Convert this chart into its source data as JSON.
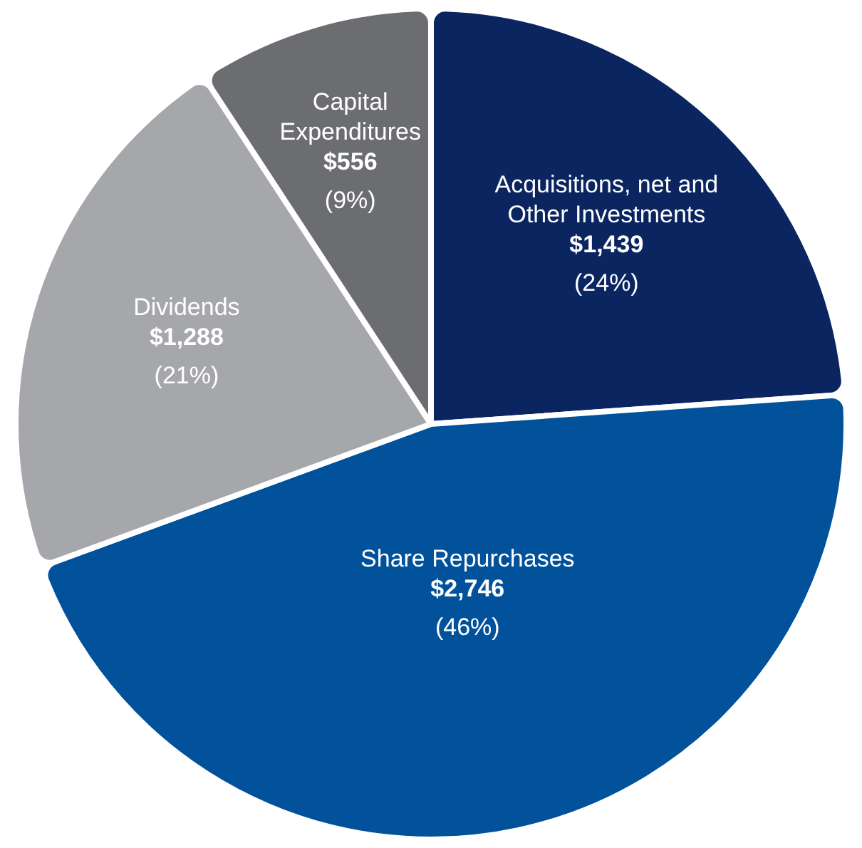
{
  "chart_data": {
    "type": "pie",
    "categories": [
      "Acquisitions, net and Other Investments",
      "Share Repurchases",
      "Dividends",
      "Capital Expenditures"
    ],
    "values": [
      1439,
      2746,
      1288,
      556
    ],
    "colors": [
      "#0b2561",
      "#02519b",
      "#a6a7aa",
      "#6c6d70"
    ],
    "value_labels": [
      "$1,439\n(24%)",
      "$2,746\n(46%)",
      "$1,288\n(21%)",
      "$556\n(9%)"
    ],
    "legend": false
  }
}
